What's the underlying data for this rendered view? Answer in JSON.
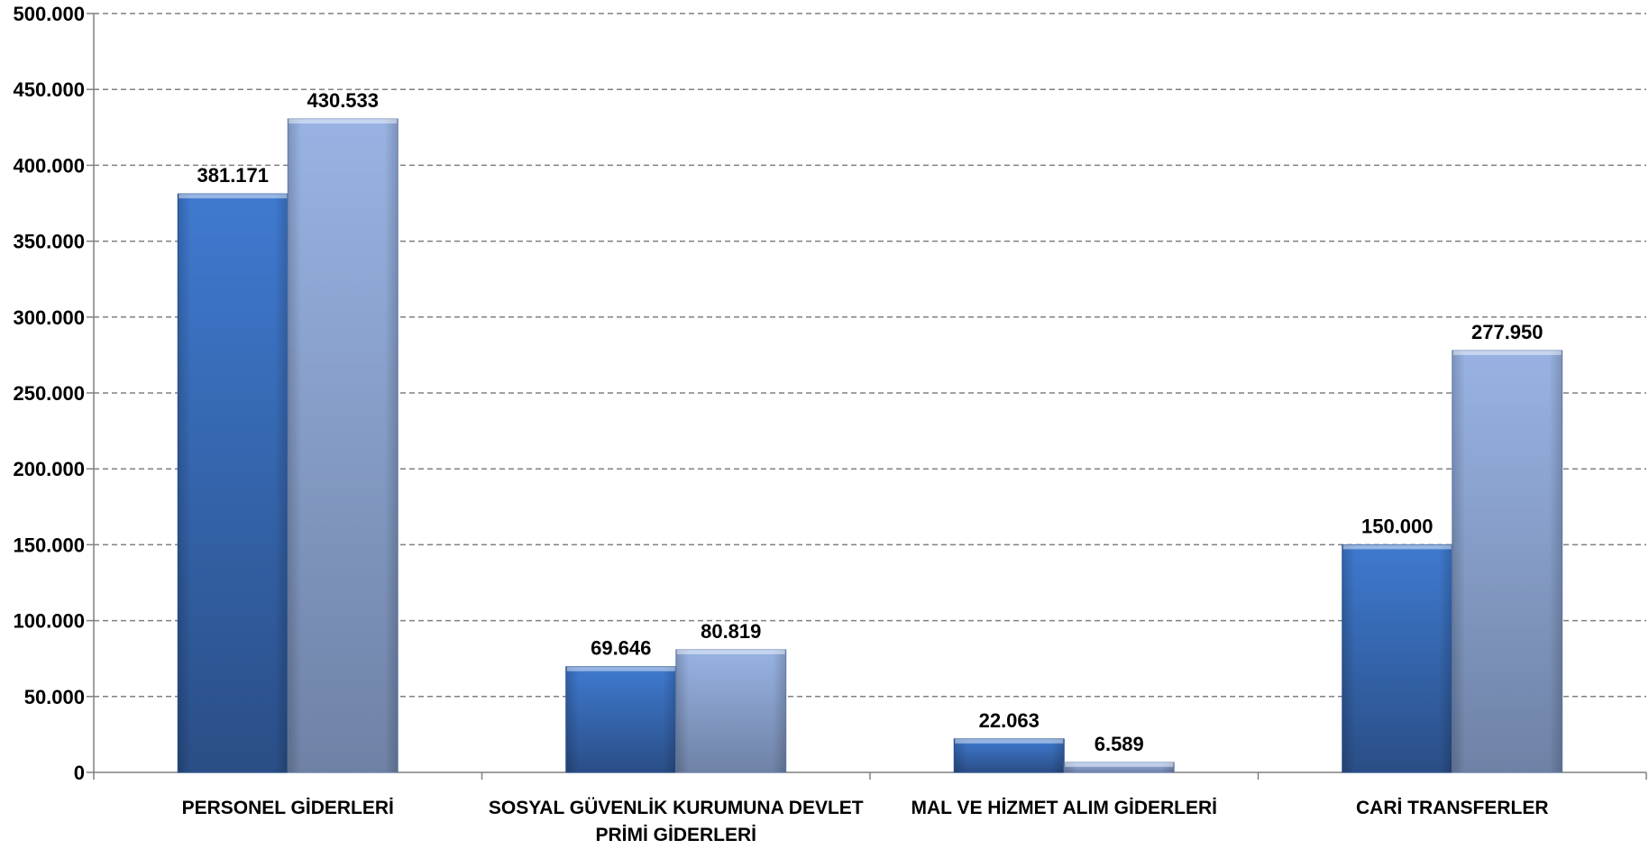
{
  "chart_data": {
    "type": "bar",
    "title": "",
    "xlabel": "",
    "ylabel": "",
    "ylim": [
      0,
      500000
    ],
    "yticks": [
      0,
      50000,
      100000,
      150000,
      200000,
      250000,
      300000,
      350000,
      400000,
      450000,
      500000
    ],
    "ytick_labels": [
      "0",
      "50.000",
      "100.000",
      "150.000",
      "200.000",
      "250.000",
      "300.000",
      "350.000",
      "400.000",
      "450.000",
      "500.000"
    ],
    "grid": true,
    "legend": "none",
    "categories": [
      [
        "PERSONEL GİDERLERİ"
      ],
      [
        "SOSYAL GÜVENLİK KURUMUNA DEVLET",
        "PRİMİ GİDERLERİ"
      ],
      [
        "MAL VE HİZMET ALIM GİDERLERİ"
      ],
      [
        "CARİ TRANSFERLER"
      ]
    ],
    "series": [
      {
        "values": [
          381171,
          69646,
          22063,
          150000
        ],
        "labels": [
          "381.171",
          "69.646",
          "22.063",
          "150.000"
        ],
        "color": "#3A6FBF"
      },
      {
        "values": [
          430533,
          80819,
          6589,
          277950
        ],
        "labels": [
          "430.533",
          "80.819",
          "6.589",
          "277.950"
        ],
        "color": "#8FA9D6"
      }
    ]
  }
}
